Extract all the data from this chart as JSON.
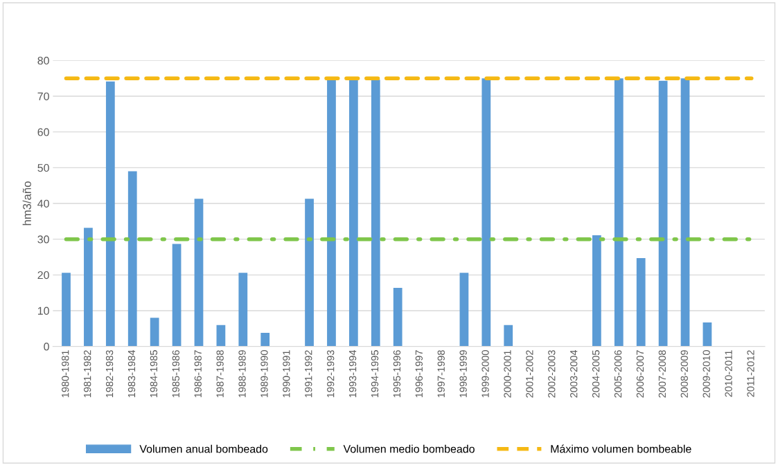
{
  "chart_data": {
    "type": "bar",
    "ylabel": "hm3/año",
    "categories": [
      "1980-1981",
      "1981-1982",
      "1982-1983",
      "1983-1984",
      "1984-1985",
      "1985-1986",
      "1986-1987",
      "1987-1988",
      "1988-1989",
      "1989-1990",
      "1990-1991",
      "1991-1992",
      "1992-1993",
      "1993-1994",
      "1994-1995",
      "1995-1996",
      "1996-1997",
      "1997-1998",
      "1998-1999",
      "1999-2000",
      "2000-2001",
      "2001-2002",
      "2002-2003",
      "2003-2004",
      "2004-2005",
      "2005-2006",
      "2006-2007",
      "2007-2008",
      "2008-2009",
      "2009-2010",
      "2010-2011",
      "2011-2012"
    ],
    "series": [
      {
        "name": "Volumen anual bombeado",
        "color": "#5b9bd5",
        "values": [
          20.6,
          33.2,
          74.1,
          49.0,
          8.0,
          28.7,
          41.3,
          6.0,
          20.6,
          3.8,
          0,
          41.3,
          75,
          75,
          74.6,
          16.4,
          0,
          0,
          20.6,
          75,
          6.0,
          0,
          0,
          0,
          31.1,
          75,
          24.7,
          74.3,
          75,
          6.7,
          0,
          0
        ]
      },
      {
        "name": "Volumen medio bombeado",
        "type": "line",
        "line_style": "dashdot",
        "color": "#7fc64b",
        "values": [
          30,
          30,
          30,
          30,
          30,
          30,
          30,
          30,
          30,
          30,
          30,
          30,
          30,
          30,
          30,
          30,
          30,
          30,
          30,
          30,
          30,
          30,
          30,
          30,
          30,
          30,
          30,
          30,
          30,
          30,
          30,
          30
        ]
      },
      {
        "name": "Máximo volumen bombeable",
        "type": "line",
        "line_style": "dashed",
        "color": "#f5b914",
        "values": [
          75,
          75,
          75,
          75,
          75,
          75,
          75,
          75,
          75,
          75,
          75,
          75,
          75,
          75,
          75,
          75,
          75,
          75,
          75,
          75,
          75,
          75,
          75,
          75,
          75,
          75,
          75,
          75,
          75,
          75,
          75,
          75
        ]
      }
    ],
    "ylim": [
      0,
      80
    ],
    "yticks": [
      0,
      10,
      20,
      30,
      40,
      50,
      60,
      70,
      80
    ],
    "grid": "y",
    "legend": "bottom"
  }
}
